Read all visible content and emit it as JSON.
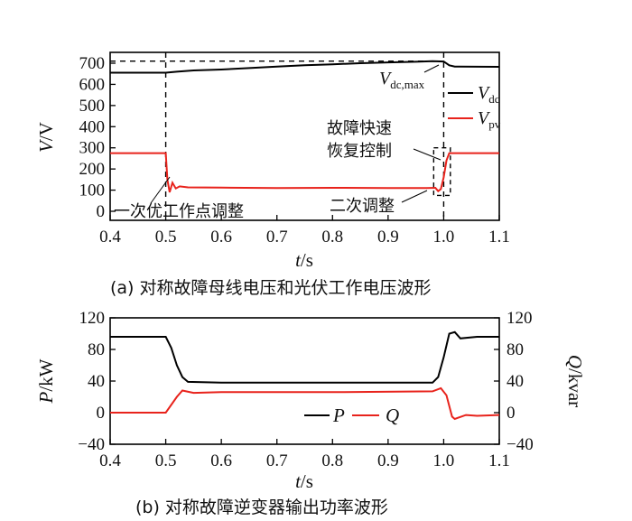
{
  "chart_data": [
    {
      "type": "line",
      "caption": "(a)  对称故障母线电压和光伏工作电压波形",
      "xlabel_var": "t",
      "xlabel_unit": "/s",
      "ylabel_var": "V",
      "ylabel_unit": "/V",
      "xlim": [
        0.4,
        1.1
      ],
      "ylim": [
        0,
        700
      ],
      "x_ticks": [
        "0.4",
        "0.5",
        "0.6",
        "0.7",
        "0.8",
        "0.9",
        "1.0",
        "1.1"
      ],
      "y_ticks": [
        "0",
        "100",
        "200",
        "300",
        "400",
        "500",
        "600",
        "700"
      ],
      "legend_position": "right",
      "series": [
        {
          "name": "V_dc",
          "name_main": "V",
          "name_sub": "dc",
          "color": "#000000",
          "points": [
            [
              0.4,
              655
            ],
            [
              0.5,
              655
            ],
            [
              0.52,
              660
            ],
            [
              0.55,
              666
            ],
            [
              0.6,
              670
            ],
            [
              0.65,
              677
            ],
            [
              0.7,
              684
            ],
            [
              0.75,
              690
            ],
            [
              0.8,
              695
            ],
            [
              0.85,
              700
            ],
            [
              0.9,
              704
            ],
            [
              0.95,
              707
            ],
            [
              0.98,
              710
            ],
            [
              1.0,
              708
            ],
            [
              1.01,
              690
            ],
            [
              1.02,
              684
            ],
            [
              1.1,
              683
            ]
          ]
        },
        {
          "name": "V_pv",
          "name_main": "V",
          "name_sub": "pv",
          "color": "#e8231c",
          "points": [
            [
              0.4,
              275
            ],
            [
              0.5,
              275
            ],
            [
              0.503,
              150
            ],
            [
              0.507,
              90
            ],
            [
              0.512,
              135
            ],
            [
              0.518,
              108
            ],
            [
              0.525,
              118
            ],
            [
              0.54,
              113
            ],
            [
              0.6,
              112
            ],
            [
              0.7,
              110
            ],
            [
              0.8,
              111
            ],
            [
              0.9,
              110
            ],
            [
              0.97,
              110
            ],
            [
              0.985,
              111
            ],
            [
              0.99,
              95
            ],
            [
              0.995,
              105
            ],
            [
              1.0,
              160
            ],
            [
              1.005,
              240
            ],
            [
              1.01,
              275
            ],
            [
              1.1,
              275
            ]
          ]
        }
      ],
      "annotations": {
        "vdcmax_main": "V",
        "vdcmax_sub": "dc,max",
        "first_adjust": "一次优工作点调整",
        "second_adjust": "二次调整",
        "recovery_line1": "故障快速",
        "recovery_line2": "恢复控制"
      }
    },
    {
      "type": "line",
      "caption": "(b)  对称故障逆变器输出功率波形",
      "xlabel_var": "t",
      "xlabel_unit": "/s",
      "ylabel_left_var": "P",
      "ylabel_left_unit": "/kW",
      "ylabel_right_var": "Q",
      "ylabel_right_unit": "/kvar",
      "xlim": [
        0.4,
        1.1
      ],
      "ylim": [
        -40,
        120
      ],
      "x_ticks": [
        "0.4",
        "0.5",
        "0.6",
        "0.7",
        "0.8",
        "0.9",
        "1.0",
        "1.1"
      ],
      "y_ticks": [
        "−40",
        "0",
        "40",
        "80",
        "120"
      ],
      "legend_position": "bottom-right",
      "series": [
        {
          "name": "P",
          "color": "#000000",
          "points": [
            [
              0.4,
              96
            ],
            [
              0.5,
              96
            ],
            [
              0.51,
              82
            ],
            [
              0.52,
              60
            ],
            [
              0.53,
              45
            ],
            [
              0.54,
              39
            ],
            [
              0.6,
              38
            ],
            [
              0.8,
              38
            ],
            [
              0.98,
              38
            ],
            [
              0.99,
              45
            ],
            [
              1.0,
              70
            ],
            [
              1.01,
              100
            ],
            [
              1.02,
              102
            ],
            [
              1.03,
              94
            ],
            [
              1.06,
              96
            ],
            [
              1.1,
              96
            ]
          ]
        },
        {
          "name": "Q",
          "color": "#e8231c",
          "points": [
            [
              0.4,
              0
            ],
            [
              0.5,
              0
            ],
            [
              0.52,
              20
            ],
            [
              0.53,
              28
            ],
            [
              0.55,
              25
            ],
            [
              0.6,
              26
            ],
            [
              0.8,
              26
            ],
            [
              0.98,
              27
            ],
            [
              0.995,
              31
            ],
            [
              1.005,
              22
            ],
            [
              1.015,
              -5
            ],
            [
              1.02,
              -8
            ],
            [
              1.04,
              -3
            ],
            [
              1.06,
              -4
            ],
            [
              1.1,
              -3
            ]
          ]
        }
      ]
    }
  ]
}
